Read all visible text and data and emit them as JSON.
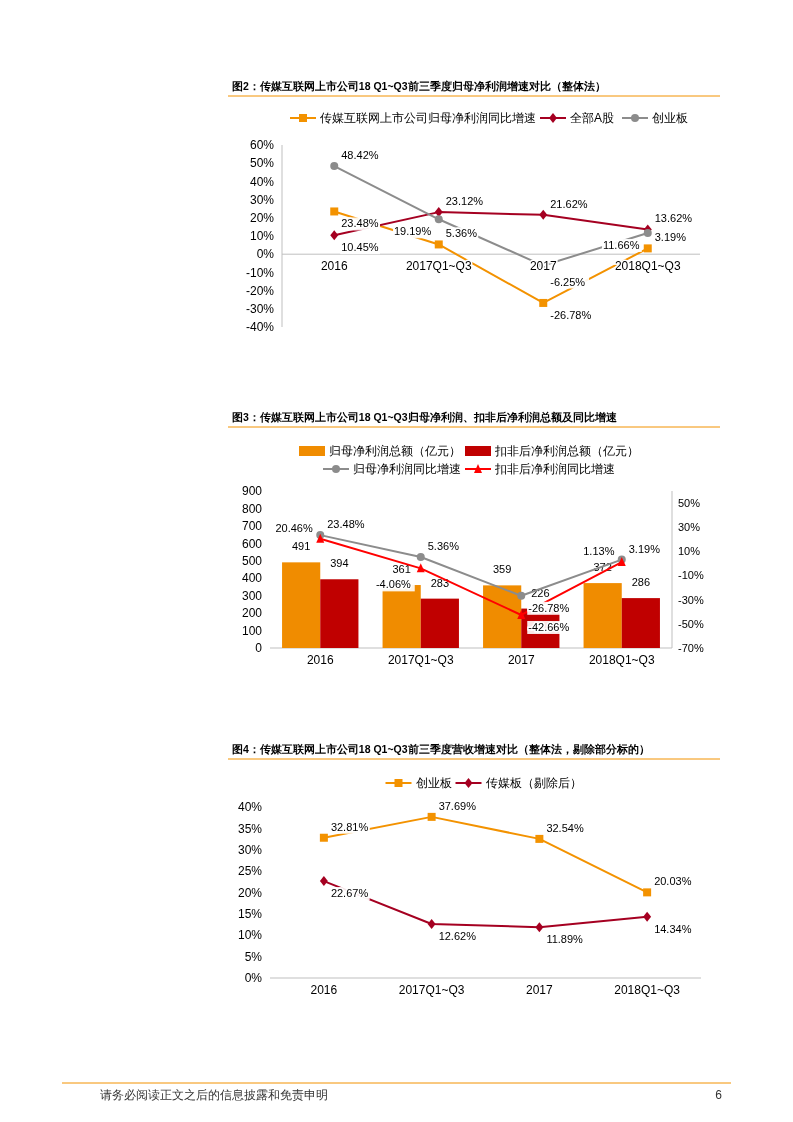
{
  "chart_data": [
    {
      "type": "line",
      "title": "图2：传媒互联网上市公司18 Q1~Q3前三季度归母净利润增速对比（整体法）",
      "categories": [
        "2016",
        "2017Q1~Q3",
        "2017",
        "2018Q1~Q3"
      ],
      "ylim": [
        -40,
        60
      ],
      "yticks": [
        {
          "value": -40,
          "label": "-40%"
        },
        {
          "value": -30,
          "label": "-30%"
        },
        {
          "value": -20,
          "label": "-20%"
        },
        {
          "value": -10,
          "label": "-10%"
        },
        {
          "value": 0,
          "label": "0%"
        },
        {
          "value": 10,
          "label": "10%"
        },
        {
          "value": 20,
          "label": "20%"
        },
        {
          "value": 30,
          "label": "30%"
        },
        {
          "value": 40,
          "label": "40%"
        },
        {
          "value": 50,
          "label": "50%"
        },
        {
          "value": 60,
          "label": "60%"
        }
      ],
      "legend": "top",
      "series": [
        {
          "name": "传媒互联网上市公司归母净利润同比增速",
          "color": "#f39200",
          "marker": "square",
          "values": [
            23.48,
            5.36,
            -26.78,
            3.19
          ],
          "value_labels": [
            "23.48%",
            "5.36%",
            "-26.78%",
            "3.19%"
          ]
        },
        {
          "name": "全部A股",
          "color": "#a50021",
          "marker": "diamond",
          "values": [
            10.45,
            23.12,
            21.62,
            13.62
          ],
          "value_labels": [
            "10.45%",
            "23.12%",
            "21.62%",
            "13.62%"
          ]
        },
        {
          "name": "创业板",
          "color": "#8c8c8c",
          "marker": "circle",
          "values": [
            48.42,
            19.19,
            -6.25,
            11.66
          ],
          "value_labels": [
            "48.42%",
            "19.19%",
            "-6.25%",
            "11.66%"
          ]
        }
      ]
    },
    {
      "type": "bar",
      "title": "图3：传媒互联网上市公司18 Q1~Q3归母净利润、扣非后净利润总额及同比增速",
      "categories": [
        "2016",
        "2017Q1~Q3",
        "2017",
        "2018Q1~Q3"
      ],
      "ylim": [
        0,
        900
      ],
      "yticks": [
        0,
        100,
        200,
        300,
        400,
        500,
        600,
        700,
        800,
        900
      ],
      "y2lim": [
        -70,
        60
      ],
      "y2ticks": [
        {
          "value": -70,
          "label": "-70%"
        },
        {
          "value": -50,
          "label": "-50%"
        },
        {
          "value": -30,
          "label": "-30%"
        },
        {
          "value": -10,
          "label": "-10%"
        },
        {
          "value": 10,
          "label": "10%"
        },
        {
          "value": 30,
          "label": "30%"
        },
        {
          "value": 50,
          "label": "50%"
        }
      ],
      "legend": "top",
      "data_labels": true,
      "series": [
        {
          "name": "归母净利润总额（亿元）",
          "color": "#f08c00",
          "values": [
            491,
            361,
            359,
            372
          ]
        },
        {
          "name": "扣非后净利润总额（亿元）",
          "color": "#c00000",
          "values": [
            394,
            283,
            226,
            286
          ]
        },
        {
          "name": "归母净利润同比增速",
          "type": "line",
          "axis": "y2",
          "color": "#8c8c8c",
          "marker": "circle",
          "values": [
            23.48,
            5.36,
            -26.78,
            3.19
          ],
          "value_labels": [
            "23.48%",
            "5.36%",
            "-26.78%",
            "3.19%"
          ]
        },
        {
          "name": "扣非后净利润同比增速",
          "type": "line",
          "axis": "y2",
          "color": "#ff0000",
          "marker": "triangle",
          "values": [
            20.46,
            -4.06,
            -42.66,
            1.13
          ],
          "value_labels": [
            "20.46%",
            "-4.06%",
            "-42.66%",
            "1.13%"
          ]
        }
      ]
    },
    {
      "type": "line",
      "title": "图4：传媒互联网上市公司18 Q1~Q3前三季度营收增速对比（整体法，剔除部分标的）",
      "categories": [
        "2016",
        "2017Q1~Q3",
        "2017",
        "2018Q1~Q3"
      ],
      "ylim": [
        0,
        40
      ],
      "yticks": [
        {
          "value": 0,
          "label": "0%"
        },
        {
          "value": 5,
          "label": "5%"
        },
        {
          "value": 10,
          "label": "10%"
        },
        {
          "value": 15,
          "label": "15%"
        },
        {
          "value": 20,
          "label": "20%"
        },
        {
          "value": 25,
          "label": "25%"
        },
        {
          "value": 30,
          "label": "30%"
        },
        {
          "value": 35,
          "label": "35%"
        },
        {
          "value": 40,
          "label": "40%"
        }
      ],
      "legend": "top",
      "annotations": [
        "请务必阅读正文之后的信息披露和免责申明",
        "6"
      ],
      "series": [
        {
          "name": "创业板",
          "color": "#f39200",
          "marker": "square",
          "values": [
            32.81,
            37.69,
            32.54,
            20.03
          ],
          "value_labels": [
            "32.81%",
            "37.69%",
            "32.54%",
            "20.03%"
          ]
        },
        {
          "name": "传媒板（剔除后）",
          "color": "#a50021",
          "marker": "diamond",
          "values": [
            22.67,
            12.62,
            11.89,
            14.34
          ],
          "value_labels": [
            "22.67%",
            "12.62%",
            "11.89%",
            "14.34%"
          ]
        }
      ]
    }
  ]
}
